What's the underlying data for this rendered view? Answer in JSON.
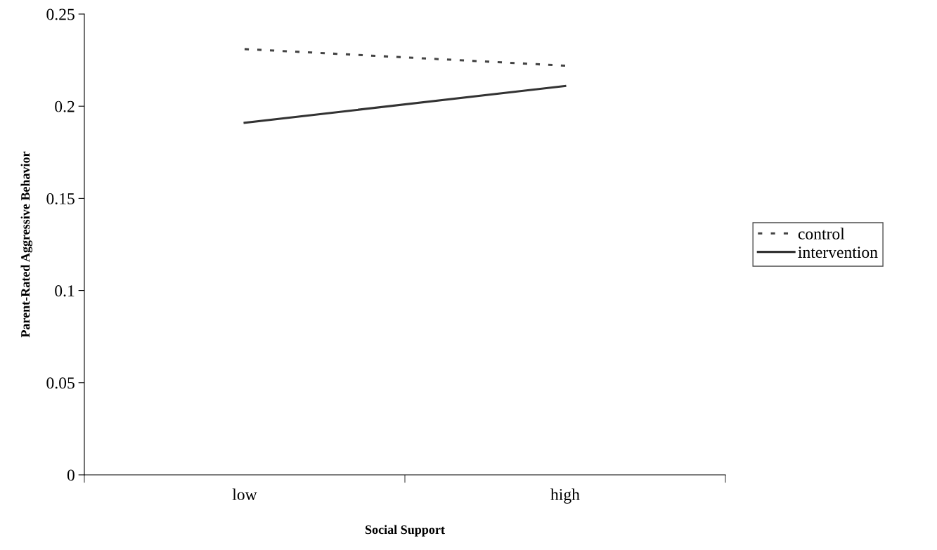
{
  "chart_data": {
    "type": "line",
    "xlabel": "Social Support",
    "ylabel": "Parent-Rated Aggressive Behavior",
    "categories": [
      "low",
      "high"
    ],
    "series": [
      {
        "name": "control",
        "color": "#444444",
        "values": [
          0.231,
          0.222
        ],
        "line_style": "dashed"
      },
      {
        "name": "intervention",
        "color": "#333333",
        "values": [
          0.191,
          0.211
        ],
        "line_style": "solid"
      }
    ],
    "ylim": [
      0,
      0.25
    ],
    "yticks": [
      0,
      0.05,
      0.1,
      0.15,
      0.2,
      0.25
    ],
    "grid": false,
    "legend": "right",
    "marker": "none"
  }
}
